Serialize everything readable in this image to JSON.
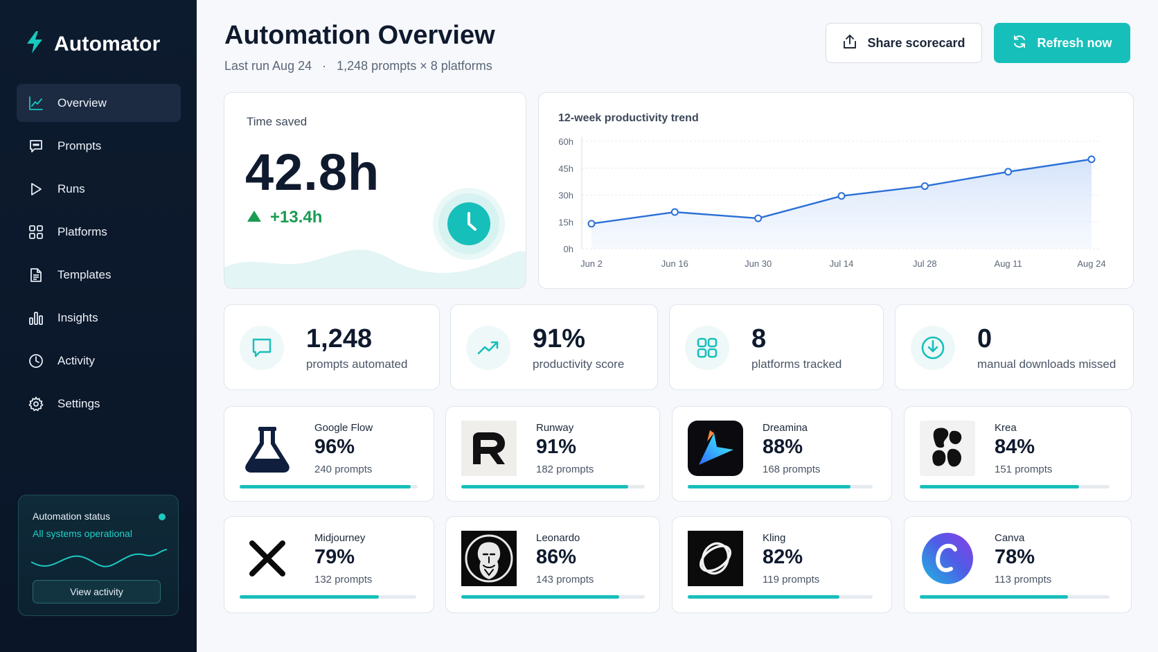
{
  "app": {
    "name": "Automator"
  },
  "nav": [
    {
      "label": "Overview",
      "icon": "chart-line-icon",
      "active": true
    },
    {
      "label": "Prompts",
      "icon": "chat-icon",
      "active": false
    },
    {
      "label": "Runs",
      "icon": "play-icon",
      "active": false
    },
    {
      "label": "Platforms",
      "icon": "grid-icon",
      "active": false
    },
    {
      "label": "Templates",
      "icon": "document-icon",
      "active": false
    },
    {
      "label": "Insights",
      "icon": "bar-chart-icon",
      "active": false
    },
    {
      "label": "Activity",
      "icon": "clock-icon",
      "active": false
    },
    {
      "label": "Settings",
      "icon": "gear-icon",
      "active": false
    }
  ],
  "status": {
    "title": "Automation status",
    "text": "All systems operational",
    "button": "View activity"
  },
  "header": {
    "title": "Automation Overview",
    "last_run": "Last run Aug 24",
    "separator": "·",
    "summary": "1,248 prompts × 8 platforms",
    "share_label": "Share scorecard",
    "refresh_label": "Refresh now"
  },
  "time_saved": {
    "label": "Time saved",
    "value": "42.8h",
    "delta": "+13.4h"
  },
  "chart_data": {
    "type": "area",
    "title": "12-week productivity trend",
    "categories": [
      "Jun 2",
      "Jun 16",
      "Jun 30",
      "Jul 14",
      "Jul 28",
      "Aug 11",
      "Aug 24"
    ],
    "y_ticks": [
      "60h",
      "45h",
      "30h",
      "15h",
      "0h"
    ],
    "ylim": [
      0,
      60
    ],
    "unit": "h",
    "series": [
      {
        "values": [
          14,
          20.5,
          17,
          29.5,
          35,
          43,
          50
        ]
      }
    ],
    "grid": true
  },
  "stats": [
    {
      "value": "1,248",
      "label": "prompts automated",
      "icon": "chat-icon"
    },
    {
      "value": "91%",
      "label": "productivity score",
      "icon": "trend-up-icon"
    },
    {
      "value": "8",
      "label": "platforms tracked",
      "icon": "grid-icon"
    },
    {
      "value": "0",
      "label": "manual downloads missed",
      "icon": "download-icon"
    }
  ],
  "platforms": [
    {
      "name": "Google Flow",
      "pct": "96%",
      "prompts": "240 prompts",
      "fill": 0.96,
      "logo": "flask-icon"
    },
    {
      "name": "Runway",
      "pct": "91%",
      "prompts": "182 prompts",
      "fill": 0.91,
      "logo": "runway-logo"
    },
    {
      "name": "Dreamina",
      "pct": "88%",
      "prompts": "168 prompts",
      "fill": 0.88,
      "logo": "dreamina-logo"
    },
    {
      "name": "Krea",
      "pct": "84%",
      "prompts": "151 prompts",
      "fill": 0.84,
      "logo": "krea-logo"
    },
    {
      "name": "Midjourney",
      "pct": "79%",
      "prompts": "132 prompts",
      "fill": 0.79,
      "logo": "midjourney-logo"
    },
    {
      "name": "Leonardo",
      "pct": "86%",
      "prompts": "143 prompts",
      "fill": 0.86,
      "logo": "leonardo-logo"
    },
    {
      "name": "Kling",
      "pct": "82%",
      "prompts": "119 prompts",
      "fill": 0.82,
      "logo": "kling-logo"
    },
    {
      "name": "Canva",
      "pct": "78%",
      "prompts": "113 prompts",
      "fill": 0.78,
      "logo": "canva-logo"
    }
  ],
  "colors": {
    "accent": "#17bfba",
    "sidebar": "#0d1b2e",
    "positive": "#1a9b52",
    "chart_line": "#2a6fd6"
  }
}
